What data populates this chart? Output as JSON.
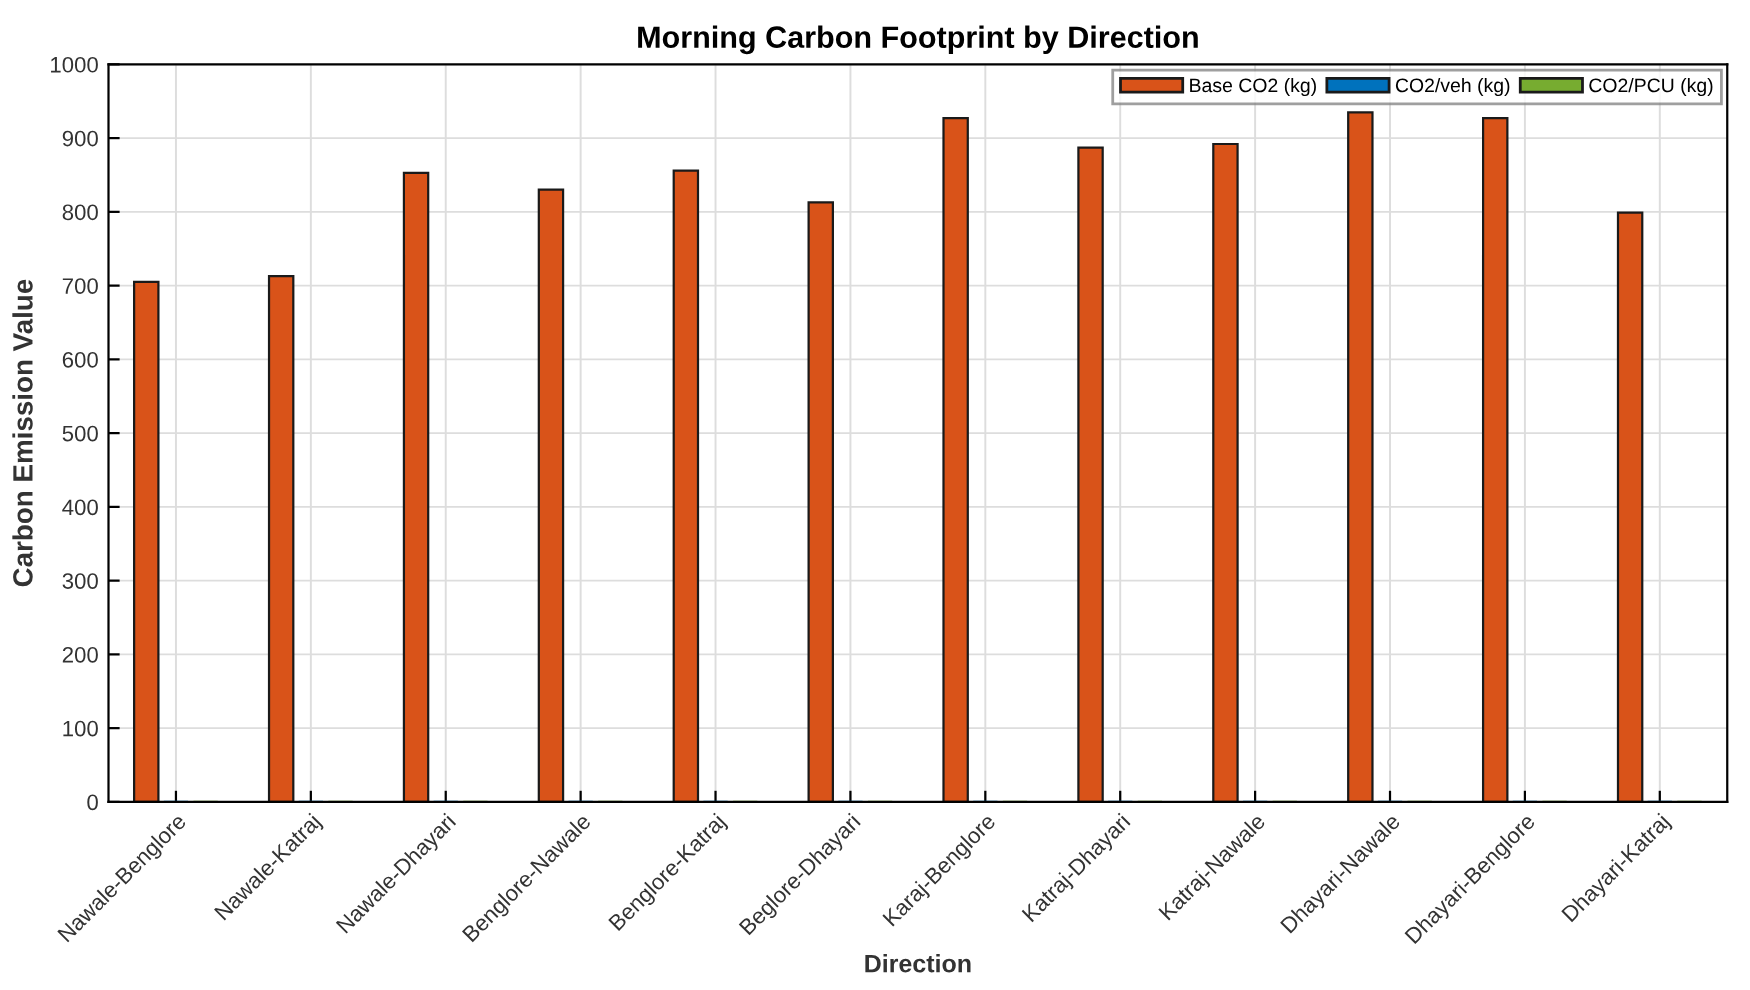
{
  "chart_data": {
    "type": "bar",
    "title": "Morning Carbon Footprint by Direction",
    "xlabel": "Direction",
    "ylabel": "Carbon Emission Value",
    "categories": [
      "Nawale-Benglore",
      "Nawale-Katraj",
      "Nawale-Dhayari",
      "Benglore-Nawale",
      "Benglore-Katraj",
      "Beglore-Dhayari",
      "Karaj-Benglore",
      "Katraj-Dhayari",
      "Katraj-Nawale",
      "Dhayari-Nawale",
      "Dhayari-Benglore",
      "Dhayari-Katraj"
    ],
    "series": [
      {
        "name": "Base CO2 (kg)",
        "color": "#d95319",
        "values": [
          705,
          713,
          853,
          830,
          856,
          813,
          927,
          887,
          892,
          935,
          927,
          799
        ]
      },
      {
        "name": "CO2/veh (kg)",
        "color": "#0072bd",
        "values": [
          0,
          0,
          0,
          0,
          0,
          0,
          0,
          0,
          0,
          0,
          0,
          0
        ]
      },
      {
        "name": "CO2/PCU (kg)",
        "color": "#77ac30",
        "values": [
          0,
          0,
          0,
          0,
          0,
          0,
          0,
          0,
          0,
          0,
          0,
          0
        ]
      }
    ],
    "ylim": [
      0,
      1000
    ],
    "yticks": [
      0,
      100,
      200,
      300,
      400,
      500,
      600,
      700,
      800,
      900,
      1000
    ],
    "grid": true,
    "legend": "top right"
  }
}
